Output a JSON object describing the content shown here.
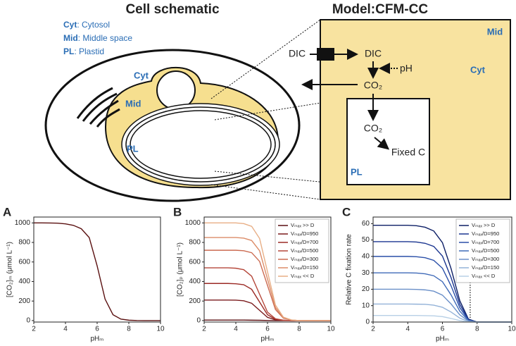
{
  "schematic": {
    "title": "Cell schematic",
    "model_title": "Model:CFM-CC",
    "legend": [
      {
        "key": "Cyt",
        "text": ": Cytosol"
      },
      {
        "key": "Mid",
        "text": ": Middle space"
      },
      {
        "key": "PL",
        "text": ": Plastid"
      }
    ],
    "cell_labels": {
      "cyt": "Cyt",
      "mid": "Mid",
      "pl": "PL"
    },
    "model": {
      "dic_out": "DIC",
      "dic_in": "DIC",
      "ph": "pH",
      "co2_mid": "CO₂",
      "co2_pl": "CO₂",
      "fixed": "Fixed C",
      "mid": "Mid",
      "cyt": "Cyt",
      "pl": "PL"
    }
  },
  "chart_data": [
    {
      "type": "line",
      "panel_label": "A",
      "xlabel": "pHₘ",
      "ylabel": "[CO₂]ₘ (μmol L⁻¹)",
      "x": [
        2,
        2.5,
        3,
        3.5,
        4,
        4.5,
        5,
        5.5,
        6,
        6.5,
        7,
        7.5,
        8,
        8.5,
        9,
        9.5,
        10
      ],
      "series": [
        {
          "name": null,
          "color": "#5a1010",
          "values": [
            1000,
            1000,
            999,
            997,
            990,
            975,
            940,
            850,
            560,
            220,
            60,
            15,
            4,
            1,
            0,
            0,
            0
          ]
        }
      ],
      "xlim": [
        2,
        10
      ],
      "ylim": [
        -15,
        1060
      ],
      "xticks": [
        2,
        4,
        6,
        8,
        10
      ],
      "yticks": [
        0,
        200,
        400,
        600,
        800,
        1000
      ]
    },
    {
      "type": "line",
      "panel_label": "B",
      "xlabel": "pHₘ",
      "ylabel": "[CO₂]ₚ (μmol L⁻¹)",
      "x": [
        2,
        2.5,
        3,
        3.5,
        4,
        4.5,
        5,
        5.5,
        6,
        6.5,
        7,
        7.5,
        8,
        8.5,
        9,
        9.5,
        10
      ],
      "legend": "upper right",
      "series": [
        {
          "name": "Vₘₐₓ >> D",
          "color": "#5a0f12",
          "values": [
            5,
            5,
            5,
            5,
            5,
            5,
            4,
            3,
            1,
            0,
            0,
            0,
            0,
            0,
            0,
            0,
            0
          ]
        },
        {
          "name": "Vₘₐₓ/D=950",
          "color": "#7a1a1c",
          "values": [
            210,
            210,
            210,
            210,
            209,
            203,
            177,
            105,
            33,
            7,
            1,
            0,
            0,
            0,
            0,
            0,
            0
          ]
        },
        {
          "name": "Vₘₐₓ/D=700",
          "color": "#9b2a25",
          "values": [
            380,
            380,
            380,
            380,
            377,
            367,
            320,
            190,
            60,
            13,
            3,
            0,
            0,
            0,
            0,
            0,
            0
          ]
        },
        {
          "name": "Vₘₐₓ/D=500",
          "color": "#b5473a",
          "values": [
            540,
            540,
            540,
            540,
            536,
            521,
            454,
            270,
            86,
            19,
            4,
            0,
            0,
            0,
            0,
            0,
            0
          ]
        },
        {
          "name": "Vₘₐₓ/D=300",
          "color": "#cb6a50",
          "values": [
            720,
            720,
            720,
            720,
            720,
            715,
            695,
            606,
            360,
            114,
            25,
            5,
            0,
            0,
            0,
            0,
            0
          ]
        },
        {
          "name": "Vₘₐₓ/D=150",
          "color": "#dc8c68",
          "values": [
            850,
            850,
            850,
            850,
            850,
            844,
            820,
            715,
            425,
            135,
            30,
            6,
            0,
            0,
            0,
            0,
            0
          ]
        },
        {
          "name": "Vₘₐₓ << D",
          "color": "#e8ae85",
          "values": [
            1000,
            1000,
            1000,
            1000,
            1000,
            993,
            965,
            841,
            500,
            159,
            35,
            7,
            0,
            0,
            0,
            0,
            0
          ]
        }
      ],
      "xlim": [
        2,
        10
      ],
      "ylim": [
        -15,
        1060
      ],
      "xticks": [
        2,
        4,
        6,
        8,
        10
      ],
      "yticks": [
        0,
        200,
        400,
        600,
        800,
        1000
      ]
    },
    {
      "type": "line",
      "panel_label": "C",
      "xlabel": "pHₘ",
      "ylabel": "Relative C fixation rate",
      "x": [
        2,
        2.5,
        3,
        3.5,
        4,
        4.5,
        5,
        5.5,
        6,
        6.5,
        7,
        7.5,
        8,
        8.5,
        9,
        9.5,
        10
      ],
      "legend": "upper right",
      "vline_x": 7.6,
      "series": [
        {
          "name": "Vₘₐₓ >> D",
          "color": "#0d1f66",
          "values": [
            59,
            59,
            59,
            59,
            59,
            58.7,
            57.8,
            55.5,
            48.4,
            32.5,
            13,
            1.8,
            0,
            0,
            0,
            0,
            0
          ]
        },
        {
          "name": "Vₘₐₓ/D=950",
          "color": "#1a3590",
          "values": [
            49,
            49,
            49,
            49,
            49,
            48.8,
            48,
            46.1,
            40.2,
            27,
            10.8,
            1.5,
            0,
            0,
            0,
            0,
            0
          ]
        },
        {
          "name": "Vₘₐₓ/D=700",
          "color": "#2a4fa8",
          "values": [
            40,
            40,
            40,
            40,
            40,
            39.8,
            39.2,
            37.6,
            32.8,
            22,
            8.8,
            1.2,
            0,
            0,
            0,
            0,
            0
          ]
        },
        {
          "name": "Vₘₐₓ/D=500",
          "color": "#3f6ab8",
          "values": [
            30,
            30,
            30,
            30,
            30,
            29.9,
            29.4,
            28.2,
            24.6,
            16.5,
            6.6,
            0.9,
            0,
            0,
            0,
            0,
            0
          ]
        },
        {
          "name": "Vₘₐₓ/D=300",
          "color": "#6a8fc8",
          "values": [
            20,
            20,
            20,
            20,
            20,
            19.9,
            19.6,
            18.8,
            16.4,
            11,
            4.4,
            0.6,
            0,
            0,
            0,
            0,
            0
          ]
        },
        {
          "name": "Vₘₐₓ/D=150",
          "color": "#93b2d8",
          "values": [
            11,
            11,
            11,
            11,
            11,
            10.9,
            10.8,
            10.3,
            9,
            6.1,
            2.4,
            0.3,
            0,
            0,
            0,
            0,
            0
          ]
        },
        {
          "name": "Vₘₐₓ << D",
          "color": "#b8d0e6",
          "values": [
            4,
            4,
            4,
            4,
            4,
            4,
            3.9,
            3.8,
            3.3,
            2.2,
            0.9,
            0.1,
            0,
            0,
            0,
            0,
            0
          ]
        }
      ],
      "xlim": [
        2,
        10
      ],
      "ylim": [
        0,
        64
      ],
      "xticks": [
        2,
        4,
        6,
        8,
        10
      ],
      "yticks": [
        0,
        10,
        20,
        30,
        40,
        50,
        60
      ]
    }
  ]
}
